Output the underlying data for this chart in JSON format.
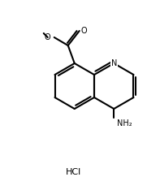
{
  "title": "",
  "background_color": "#ffffff",
  "line_color": "#000000",
  "line_width": 1.5,
  "font_size_label": 7,
  "hcl_label": "HCl",
  "nh2_label": "NH₂",
  "n_label": "N",
  "o_label": "O",
  "methyl_label": "O"
}
